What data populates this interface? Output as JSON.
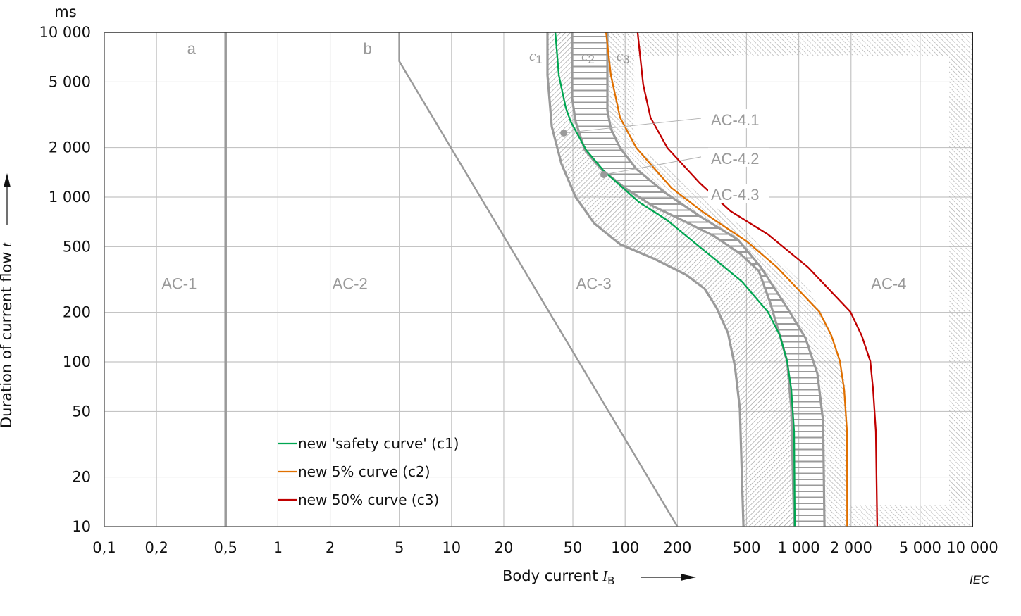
{
  "chart_data": {
    "type": "line",
    "title": "",
    "x_scale": "log",
    "y_scale": "log",
    "xlim": [
      0.1,
      10000
    ],
    "ylim": [
      10,
      10000
    ],
    "grid": true,
    "y_unit": "ms",
    "xlabel": {
      "text": "Body current ",
      "symbol": "I",
      "sub": "B"
    },
    "ylabel": {
      "text": "Duration of current flow ",
      "symbol": "t"
    },
    "x_ticks": [
      {
        "v": 0.1,
        "label": "0,1"
      },
      {
        "v": 0.2,
        "label": "0,2"
      },
      {
        "v": 0.5,
        "label": "0,5"
      },
      {
        "v": 1,
        "label": "1"
      },
      {
        "v": 2,
        "label": "2"
      },
      {
        "v": 5,
        "label": "5"
      },
      {
        "v": 10,
        "label": "10"
      },
      {
        "v": 20,
        "label": "20"
      },
      {
        "v": 50,
        "label": "50"
      },
      {
        "v": 100,
        "label": "100"
      },
      {
        "v": 200,
        "label": "200"
      },
      {
        "v": 500,
        "label": "500"
      },
      {
        "v": 1000,
        "label": "1 000"
      },
      {
        "v": 2000,
        "label": "2 000"
      },
      {
        "v": 5000,
        "label": "5 000"
      },
      {
        "v": 10000,
        "label": "10 000"
      }
    ],
    "y_ticks": [
      {
        "v": 10,
        "label": "10"
      },
      {
        "v": 20,
        "label": "20"
      },
      {
        "v": 50,
        "label": "50"
      },
      {
        "v": 100,
        "label": "100"
      },
      {
        "v": 200,
        "label": "200"
      },
      {
        "v": 500,
        "label": "500"
      },
      {
        "v": 1000,
        "label": "1 000"
      },
      {
        "v": 2000,
        "label": "2 000"
      },
      {
        "v": 5000,
        "label": "5 000"
      },
      {
        "v": 10000,
        "label": "10 000"
      }
    ],
    "boundaries": {
      "a": [
        [
          0.5,
          10
        ],
        [
          0.5,
          10000
        ]
      ],
      "b": [
        [
          5,
          10000
        ],
        [
          5,
          6680
        ],
        [
          200,
          10
        ]
      ],
      "c1_left": [
        [
          35.7,
          10000
        ],
        [
          35.7,
          5490
        ],
        [
          37.8,
          2675
        ],
        [
          43,
          1588
        ],
        [
          51.9,
          1000
        ],
        [
          66.2,
          695
        ],
        [
          93.5,
          517
        ],
        [
          145,
          425
        ],
        [
          223,
          339
        ],
        [
          287,
          278
        ],
        [
          336,
          213
        ],
        [
          391,
          150
        ],
        [
          429,
          94
        ],
        [
          458,
          52
        ],
        [
          471,
          19.5
        ],
        [
          480,
          10
        ]
      ],
      "c1_right": [
        [
          49.5,
          10000
        ],
        [
          49.5,
          3965
        ],
        [
          51.9,
          2870
        ],
        [
          58.6,
          1930
        ],
        [
          72.6,
          1483
        ],
        [
          99.8,
          1137
        ],
        [
          145,
          880
        ],
        [
          223,
          708
        ],
        [
          324,
          582
        ],
        [
          458,
          455
        ],
        [
          589,
          356
        ],
        [
          684,
          229
        ],
        [
          765,
          154
        ],
        [
          857,
          101
        ],
        [
          906,
          52
        ],
        [
          940,
          10
        ]
      ],
      "c2": [
        [
          79,
          10000
        ],
        [
          79,
          3357
        ],
        [
          82.8,
          2600
        ],
        [
          93.5,
          1990
        ],
        [
          116,
          1483
        ],
        [
          168,
          1072
        ],
        [
          269,
          767
        ],
        [
          445,
          554
        ],
        [
          606,
          374
        ],
        [
          857,
          213
        ],
        [
          1092,
          140
        ],
        [
          1280,
          85
        ],
        [
          1380,
          44
        ],
        [
          1406,
          10
        ]
      ],
      "c3": [
        [
          113,
          10000
        ],
        [
          113,
          2355
        ],
        [
          124,
          1930
        ],
        [
          153,
          1685
        ],
        [
          324,
          880
        ],
        [
          503,
          630
        ],
        [
          1166,
          270
        ],
        [
          1585,
          140
        ],
        [
          1860,
          72
        ],
        [
          1913,
          38
        ],
        [
          1913,
          10
        ]
      ]
    },
    "ac4_limit_band": {
      "left_current": 118,
      "top_time": 7160,
      "right_current": 7350,
      "bottom_time": 13.4,
      "bottom_left_current": 1950
    },
    "series": [
      {
        "name": "new 'safety curve' (c1)",
        "color": "#00a651",
        "points": [
          [
            39.6,
            10000
          ],
          [
            41.5,
            5490
          ],
          [
            45.5,
            3490
          ],
          [
            48.6,
            2870
          ],
          [
            59.7,
            1930
          ],
          [
            75.4,
            1440
          ],
          [
            120,
            933
          ],
          [
            175,
            723
          ],
          [
            238,
            554
          ],
          [
            324,
            425
          ],
          [
            471,
            307
          ],
          [
            665,
            201
          ],
          [
            780,
            144
          ],
          [
            857,
            101
          ],
          [
            906,
            68
          ],
          [
            940,
            37.8
          ],
          [
            949,
            10
          ]
        ]
      },
      {
        "name": "new 5% curve (c2)",
        "color": "#e07000",
        "points": [
          [
            77.6,
            10000
          ],
          [
            82.8,
            5490
          ],
          [
            93.5,
            3040
          ],
          [
            116,
            1990
          ],
          [
            185,
            1137
          ],
          [
            287,
            798
          ],
          [
            503,
            538
          ],
          [
            751,
            374
          ],
          [
            1316,
            201
          ],
          [
            1543,
            144
          ],
          [
            1726,
            101
          ],
          [
            1826,
            68
          ],
          [
            1896,
            37.8
          ],
          [
            1900,
            10
          ]
        ]
      },
      {
        "name": "new 50% curve (c3)",
        "color": "#c00000",
        "points": [
          [
            118,
            10000
          ],
          [
            127,
            4830
          ],
          [
            140,
            3040
          ],
          [
            175,
            1990
          ],
          [
            269,
            1217
          ],
          [
            405,
            821
          ],
          [
            665,
            594
          ],
          [
            1133,
            374
          ],
          [
            1986,
            201
          ],
          [
            2306,
            144
          ],
          [
            2582,
            101
          ],
          [
            2680,
            68
          ],
          [
            2780,
            37.8
          ],
          [
            2830,
            10
          ]
        ]
      }
    ],
    "annotations": {
      "zones": [
        {
          "label": "AC-1",
          "x": 0.27,
          "t": 300
        },
        {
          "label": "AC-2",
          "x": 2.6,
          "t": 300
        },
        {
          "label": "AC-3",
          "x": 66,
          "t": 300
        },
        {
          "label": "AC-4",
          "x": 3300,
          "t": 300
        }
      ],
      "curve_labels": [
        {
          "label": "a",
          "x": 0.3,
          "t": 8000
        },
        {
          "label": "b",
          "x": 3.1,
          "t": 8000
        }
      ],
      "c_labels": [
        {
          "letter": "c",
          "sub": "1",
          "x": 28,
          "t": 7300
        },
        {
          "letter": "c",
          "sub": "2",
          "x": 56,
          "t": 7300
        },
        {
          "letter": "c",
          "sub": "3",
          "x": 89,
          "t": 7300
        }
      ],
      "ac4_sub": [
        {
          "label": "AC-4.1",
          "t": 2950,
          "dot": [
            44.3,
            2450
          ]
        },
        {
          "label": "AC-4.2",
          "t": 1720,
          "dot": [
            75.4,
            1370
          ]
        },
        {
          "label": "AC-4.3",
          "t": 1040
        }
      ]
    },
    "legend_position": "bottom-left-center",
    "source": "IEC"
  }
}
